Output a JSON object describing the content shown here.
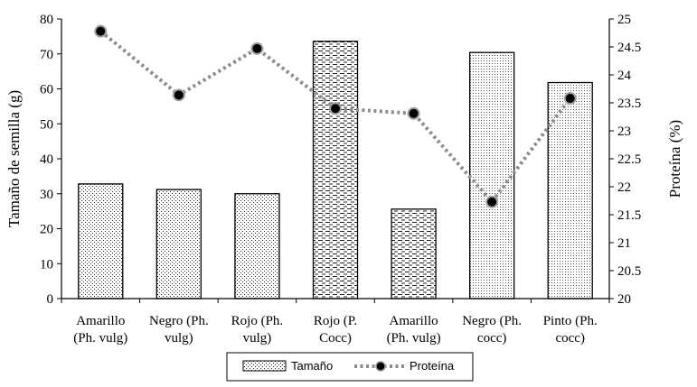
{
  "chart_data": {
    "type": "bar+line",
    "categories": [
      [
        "Amarillo",
        "(Ph. vulg)"
      ],
      [
        "Negro (Ph.",
        "vulg)"
      ],
      [
        "Rojo (Ph.",
        "vulg)"
      ],
      [
        "Rojo (P.",
        "Cocc)"
      ],
      [
        "Amarillo",
        "(Ph. vulg)"
      ],
      [
        "Negro (Ph.",
        "cocc)"
      ],
      [
        "Pinto (Ph.",
        "cocc)"
      ]
    ],
    "series": [
      {
        "name": "Tamaño",
        "type": "bar",
        "axis": "left",
        "values": [
          32.8,
          31.2,
          30.0,
          73.6,
          25.6,
          70.4,
          61.8
        ],
        "patterns": [
          "dots",
          "dots",
          "dots",
          "dashes",
          "dashes",
          "fine-dots",
          "fine-dots"
        ]
      },
      {
        "name": "Proteína",
        "type": "line",
        "axis": "right",
        "values": [
          24.78,
          23.64,
          24.47,
          23.4,
          23.31,
          21.73,
          23.58
        ],
        "line_color": "#8c8c8c",
        "marker_color": "#000000"
      }
    ],
    "ylabel": "Tamaño de semilla (g)",
    "ylabel_right": "Proteína (%)",
    "ylim": [
      0,
      80
    ],
    "yticks": [
      "0",
      "10",
      "20",
      "30",
      "40",
      "50",
      "60",
      "70",
      "80"
    ],
    "ylim_right": [
      20,
      25
    ],
    "yticks_right": [
      "20",
      "20.5",
      "21",
      "21.5",
      "22",
      "22.5",
      "23",
      "23.5",
      "24",
      "24.5",
      "25"
    ],
    "grid": false,
    "legend_position": "bottom-center"
  }
}
